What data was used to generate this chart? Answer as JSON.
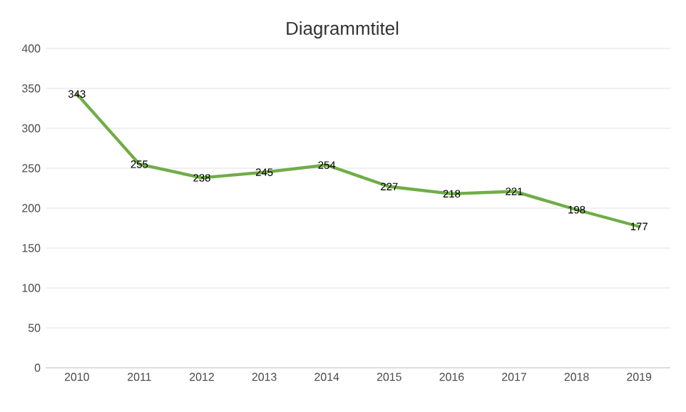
{
  "chart_data": {
    "type": "line",
    "title": "Diagrammtitel",
    "categories": [
      "2010",
      "2011",
      "2012",
      "2013",
      "2014",
      "2015",
      "2016",
      "2017",
      "2018",
      "2019"
    ],
    "values": [
      343,
      255,
      238,
      245,
      254,
      227,
      218,
      221,
      198,
      177
    ],
    "color": "#70ad47",
    "ylim": [
      0,
      400
    ],
    "yticks": [
      0,
      50,
      100,
      150,
      200,
      250,
      300,
      350,
      400
    ],
    "grid": "y",
    "data_labels": true,
    "marker": "none",
    "line_style": "solid"
  }
}
